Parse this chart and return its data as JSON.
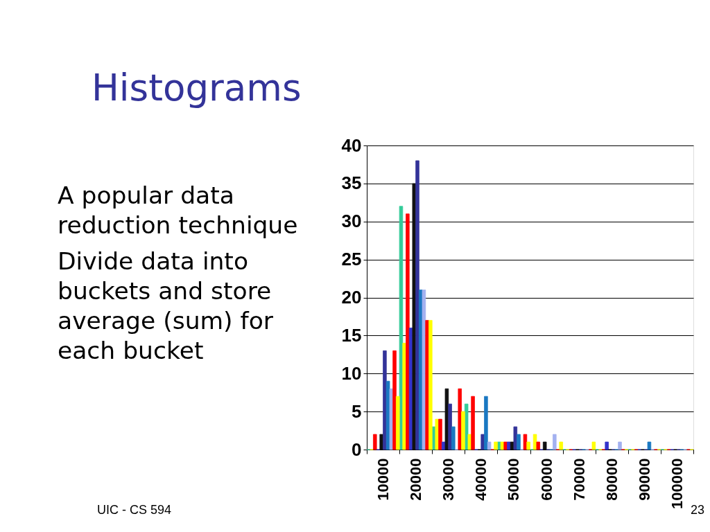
{
  "chart_data": {
    "type": "bar",
    "title": "Histograms",
    "categories": [
      "10000",
      "20000",
      "30000",
      "40000",
      "50000",
      "60000",
      "70000",
      "80000",
      "90000",
      "100000"
    ],
    "series": [
      {
        "color": "#33cc99",
        "values": [
          0,
          32,
          3,
          6,
          1,
          0,
          0,
          0,
          0,
          0
        ]
      },
      {
        "color": "#ffff00",
        "values": [
          0,
          14,
          4,
          2,
          1,
          2,
          0,
          0,
          0,
          0
        ]
      },
      {
        "color": "#ff0000",
        "values": [
          2,
          31,
          4,
          7,
          1,
          1,
          0,
          0,
          0,
          0
        ]
      },
      {
        "color": "#3333cc",
        "values": [
          0,
          16,
          1,
          0,
          1,
          0,
          0,
          1,
          0,
          0
        ]
      },
      {
        "color": "#111111",
        "values": [
          2,
          35,
          8,
          0,
          1,
          1,
          0,
          0,
          0,
          0
        ]
      },
      {
        "color": "#333399",
        "values": [
          13,
          38,
          6,
          2,
          3,
          0,
          0,
          0,
          0,
          0
        ]
      },
      {
        "color": "#1a78c2",
        "values": [
          9,
          21,
          3,
          7,
          2,
          0,
          0,
          0,
          1,
          0
        ]
      },
      {
        "color": "#a3b1f0",
        "values": [
          8,
          21,
          0,
          1,
          0,
          2,
          0,
          1,
          0,
          0
        ]
      },
      {
        "color": "#ff0000",
        "values": [
          13,
          17,
          8,
          0,
          2,
          0,
          0,
          0,
          0,
          0
        ]
      },
      {
        "color": "#ffff00",
        "values": [
          7,
          17,
          5,
          1,
          1,
          1,
          1,
          0,
          0,
          0
        ]
      }
    ],
    "ylim": [
      0,
      40
    ],
    "yticks": [
      0,
      5,
      10,
      15,
      20,
      25,
      30,
      35,
      40
    ],
    "grid": "y",
    "annotations": [
      "A popular data\nreduction technique",
      "Divide data into\nbuckets and store\naverage (sum) for\neach bucket",
      "UIC - CS 594",
      "23"
    ]
  }
}
